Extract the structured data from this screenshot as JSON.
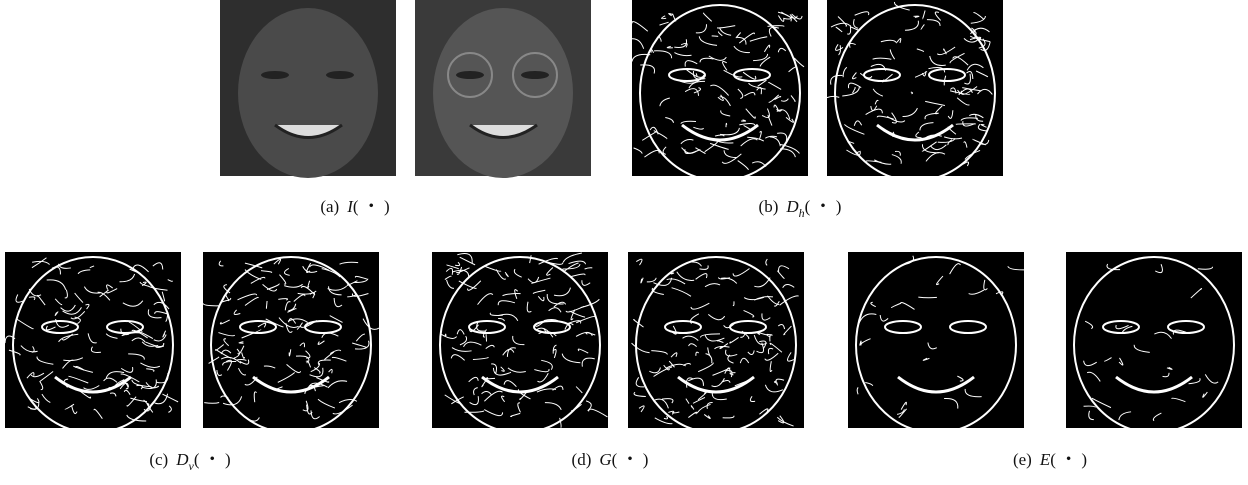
{
  "panels": [
    {
      "label": "(a)",
      "symbol": "I",
      "subscript": null,
      "arg": "( ・ )"
    },
    {
      "label": "(b)",
      "symbol": "D",
      "subscript": "h",
      "arg": "( ・ )"
    },
    {
      "label": "(c)",
      "symbol": "D",
      "subscript": "v",
      "arg": "( ・ )"
    },
    {
      "label": "(d)",
      "symbol": "G",
      "subscript": null,
      "arg": "( ・ )"
    },
    {
      "label": "(e)",
      "symbol": "E",
      "subscript": null,
      "arg": "( ・ )"
    }
  ]
}
